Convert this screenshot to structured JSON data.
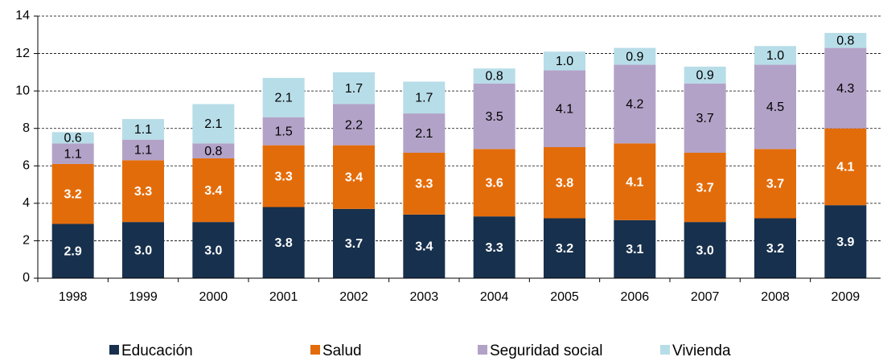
{
  "chart_data": {
    "type": "stacked_bar",
    "categories": [
      "1998",
      "1999",
      "2000",
      "2001",
      "2002",
      "2003",
      "2004",
      "2005",
      "2006",
      "2007",
      "2008",
      "2009"
    ],
    "series": [
      {
        "name": "Educación",
        "color": "#17304d",
        "values": [
          2.9,
          3.0,
          3.0,
          3.8,
          3.7,
          3.4,
          3.3,
          3.2,
          3.1,
          3.0,
          3.2,
          3.9
        ],
        "value_labels": [
          "2.9",
          "3.0",
          "3.0",
          "3.8",
          "3.7",
          "3.4",
          "3.3",
          "3.2",
          "3.1",
          "3.0",
          "3.2",
          "3.9"
        ]
      },
      {
        "name": "Salud",
        "color": "#e36c0a",
        "values": [
          3.2,
          3.3,
          3.4,
          3.3,
          3.4,
          3.3,
          3.6,
          3.8,
          4.1,
          3.7,
          3.7,
          4.1
        ],
        "value_labels": [
          "3.2",
          "3.3",
          "3.4",
          "3.3",
          "3.4",
          "3.3",
          "3.6",
          "3.8",
          "4.1",
          "3.7",
          "3.7",
          "4.1"
        ]
      },
      {
        "name": "Seguridad social",
        "color": "#b3a2c7",
        "values": [
          1.1,
          1.1,
          0.8,
          1.5,
          2.2,
          2.1,
          3.5,
          4.1,
          4.2,
          3.7,
          4.5,
          4.3
        ],
        "value_labels": [
          "1.1",
          "1.1",
          "0.8",
          "1.5",
          "2.2",
          "2.1",
          "3.5",
          "4.1",
          "4.2",
          "3.7",
          "4.5",
          "4.3"
        ]
      },
      {
        "name": "Vivienda",
        "color": "#b7dde8",
        "values": [
          0.6,
          1.1,
          2.1,
          2.1,
          1.7,
          1.7,
          0.8,
          1.0,
          0.9,
          0.9,
          1.0,
          0.8
        ],
        "value_labels": [
          "0.6",
          "1.1",
          "2.1",
          "2.1",
          "1.7",
          "1.7",
          "0.8",
          "1.0",
          "0.9",
          "0.9",
          "1.0",
          "0.8"
        ]
      }
    ],
    "ylim": [
      0,
      14
    ],
    "yticks": [
      0,
      2,
      4,
      6,
      8,
      10,
      12,
      14
    ],
    "grid": true,
    "legend": "bottom"
  }
}
